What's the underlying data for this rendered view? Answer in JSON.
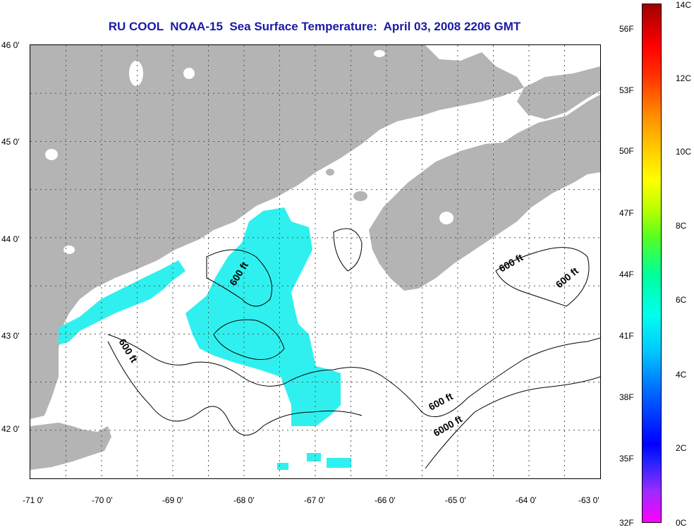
{
  "title": "RU COOL  NOAA-15  Sea Surface Temperature:  April 03, 2008 2206 GMT",
  "map": {
    "type": "satellite sea surface temperature map",
    "lon_range": [
      -71,
      -63
    ],
    "lat_range": [
      41.5,
      46
    ],
    "lon_ticks": [
      "-71 0'",
      "-70 0'",
      "-69 0'",
      "-68 0'",
      "-67 0'",
      "-66 0'",
      "-65 0'",
      "-64 0'",
      "-63 0'"
    ],
    "lat_ticks": [
      "46 0'",
      "45 0'",
      "44 0'",
      "43 0'",
      "42 0'"
    ],
    "grid": "dotted",
    "land_color": "#b4b4b4",
    "no_data_color": "#ffffff",
    "sst_color": "#2ff0ee",
    "contour_labels": [
      "600 ft",
      "600 ft",
      "600 ft",
      "600 ft",
      "600 ft",
      "6000 ft"
    ]
  },
  "colorbar": {
    "celsius_labels": [
      "14C",
      "12C",
      "10C",
      "8C",
      "6C",
      "4C",
      "2C",
      "0C"
    ],
    "fahrenheit_labels": [
      "56F",
      "53F",
      "50F",
      "47F",
      "44F",
      "41F",
      "38F",
      "35F",
      "32F"
    ],
    "range_c": [
      0,
      14
    ]
  }
}
